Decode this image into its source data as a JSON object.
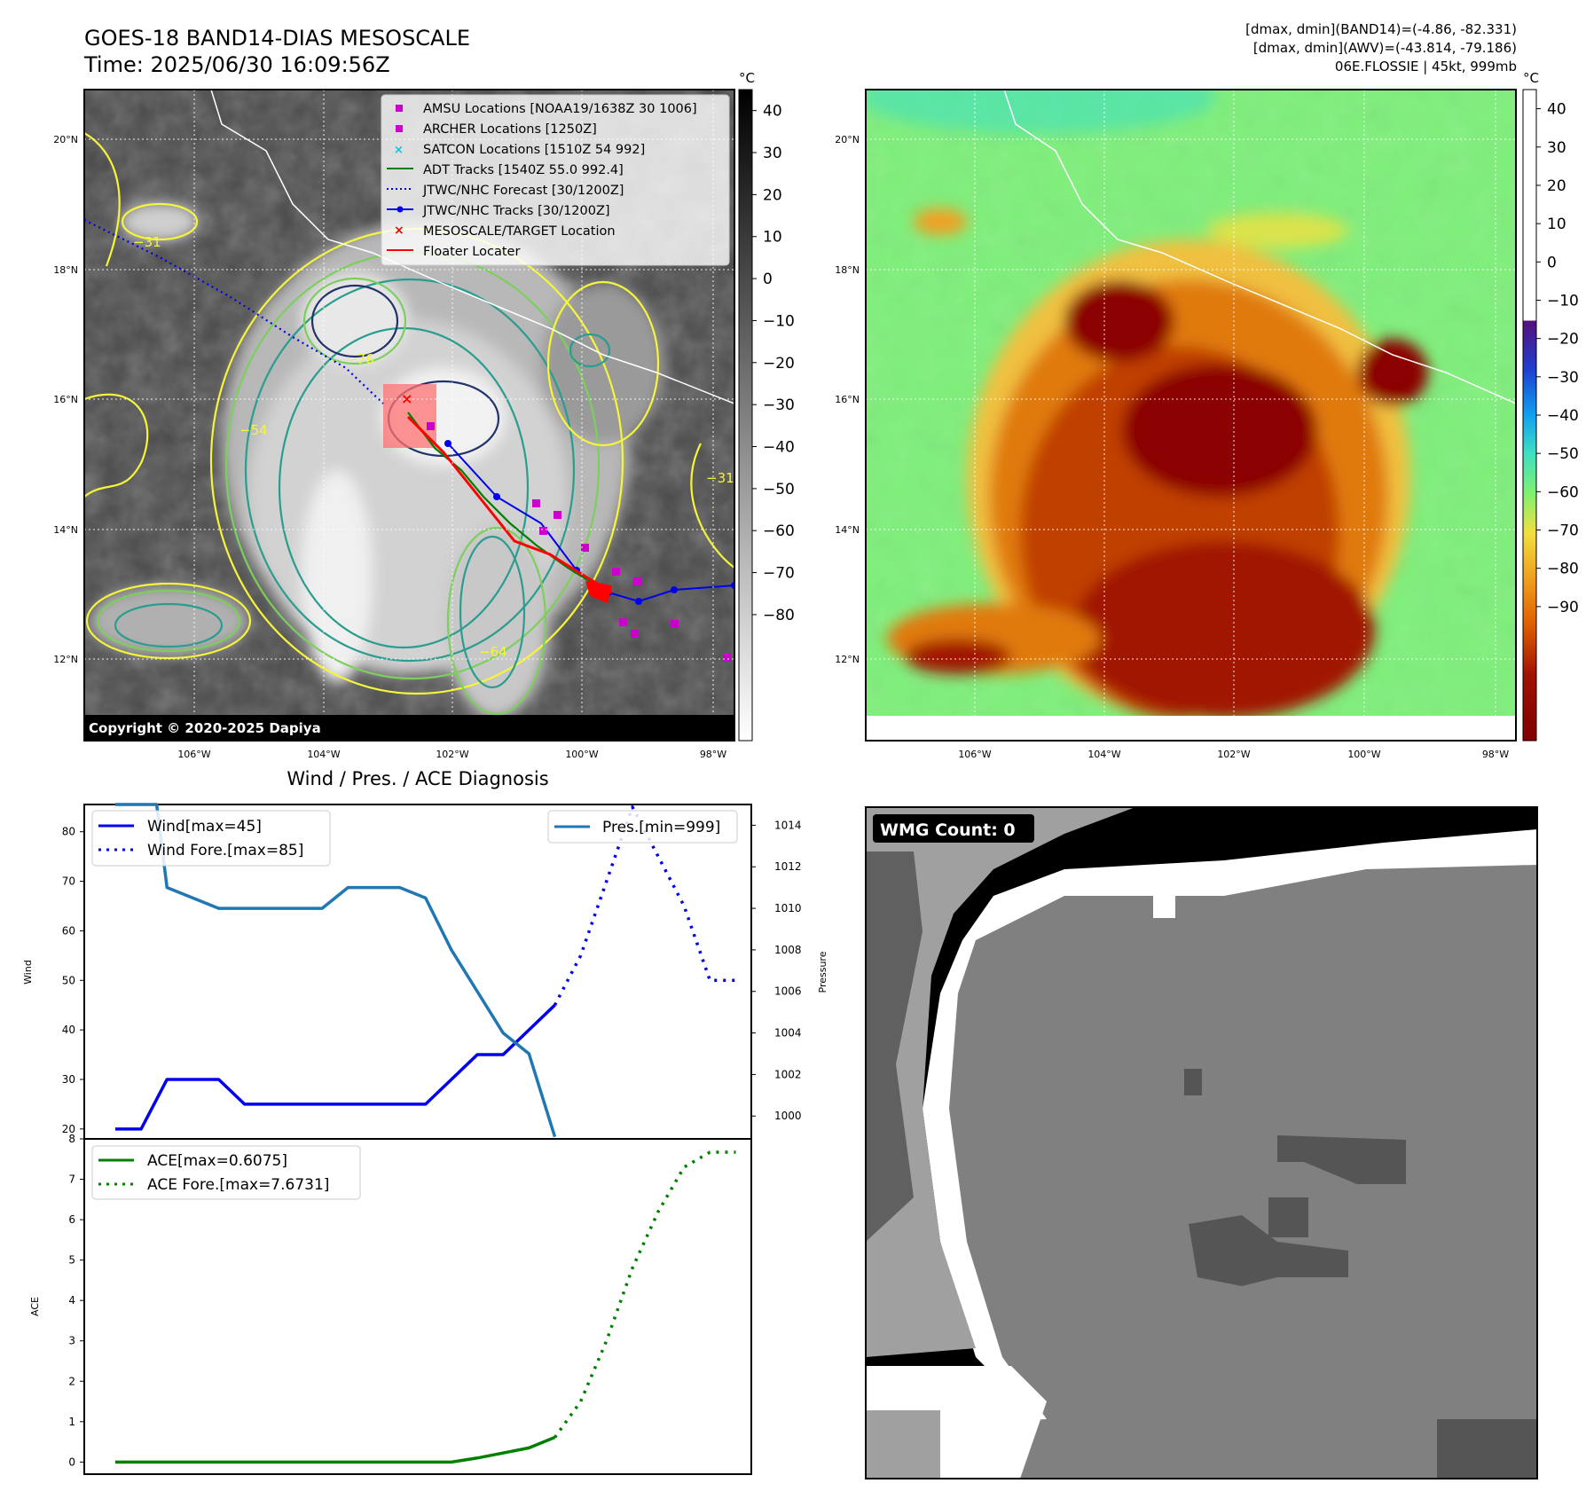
{
  "header": {
    "title": "GOES-18 BAND14-DIAS MESOSCALE",
    "time": "Time: 2025/06/30 16:09:56Z",
    "info1": "[dmax, dmin](BAND14)=(-4.86, -82.331)",
    "info2": "[dmax, dmin](AWV)=(-43.814, -79.186)",
    "info3": "06E.FLOSSIE | 45kt, 999mb"
  },
  "colors": {
    "land_dark": "#4a4a4a",
    "cloud_light": "#dcdcdc",
    "contour_yellow": "#f5f53a",
    "contour_green": "#7ccf5c",
    "contour_teal": "#2a9d8f",
    "contour_navy": "#22336b",
    "awv_green": "#7ef07a",
    "awv_orange": "#e07a10",
    "awv_red": "#8b0000",
    "wind": "#0000ee",
    "pressure": "#1f77b4",
    "ace": "#008000"
  },
  "map": {
    "lon_labels": [
      "106°W",
      "104°W",
      "102°W",
      "100°W",
      "98°W"
    ],
    "lat_labels": [
      "20°N",
      "18°N",
      "16°N",
      "14°N",
      "12°N"
    ],
    "copyright": "Copyright © 2020-2025 Dapiya",
    "unit": "°C",
    "colorbar1_ticks": [
      "40",
      "30",
      "20",
      "10",
      "0",
      "−10",
      "−20",
      "−30",
      "−40",
      "−50",
      "−60",
      "−70",
      "−80"
    ],
    "colorbar2_ticks": [
      "40",
      "30",
      "20",
      "10",
      "0",
      "−10",
      "−20",
      "−30",
      "−40",
      "−50",
      "−60",
      "−70",
      "−80",
      "−90"
    ],
    "contour_labels": [
      "−31",
      "−54",
      "−64",
      "−76",
      "−31"
    ]
  },
  "legend": {
    "items": [
      "AMSU Locations [NOAA19/1638Z 30 1006]",
      "ARCHER Locations [1250Z]",
      "SATCON Locations [1510Z 54 992]",
      "ADT Tracks [1540Z 55.0 992.4]",
      "JTWC/NHC Forecast [30/1200Z]",
      "JTWC/NHC Tracks [30/1200Z]",
      "MESOSCALE/TARGET Location",
      "Floater Locater"
    ]
  },
  "wmg": {
    "label": "WMG Count: 0"
  },
  "chart_data": [
    {
      "type": "line",
      "title": "Wind / Pres. / ACE Diagnosis",
      "ylabel": "Wind",
      "ylim": [
        18,
        85.5
      ],
      "yticks": [
        20,
        30,
        40,
        50,
        60,
        70,
        80
      ],
      "xlim": [
        -1.2,
        24.6
      ],
      "series": [
        {
          "name": "Wind[max=45]",
          "style": "solid",
          "x": [
            0,
            1,
            2,
            3,
            4,
            5,
            6,
            7,
            8,
            9,
            10,
            11,
            12,
            13,
            14,
            15,
            16,
            17
          ],
          "values": [
            20,
            20,
            30,
            30,
            30,
            25,
            25,
            25,
            25,
            25,
            25,
            25,
            25,
            30,
            35,
            35,
            40,
            45
          ]
        },
        {
          "name": "Wind Fore.[max=85]",
          "style": "dotted",
          "x": [
            17,
            18,
            19,
            20,
            21,
            22,
            23,
            24
          ],
          "values": [
            45,
            55,
            70,
            85,
            75,
            65,
            50,
            50
          ]
        }
      ],
      "y2": {
        "ylabel": "Pressure",
        "ylim": [
          998.9,
          1015.0
        ],
        "yticks": [
          1000,
          1002,
          1004,
          1006,
          1008,
          1010,
          1012,
          1014
        ],
        "series": [
          {
            "name": "Pres.[min=999]",
            "style": "solid",
            "x": [
              0,
              1,
              1.6,
              2,
              3,
              4,
              5,
              6,
              7,
              8,
              9,
              10,
              11,
              12,
              13,
              14,
              15,
              16,
              17
            ],
            "values": [
              1015,
              1015,
              1015,
              1011,
              1010.5,
              1010,
              1010,
              1010,
              1010,
              1010,
              1011,
              1011,
              1011,
              1010.5,
              1008,
              1006,
              1004,
              1003,
              999
            ]
          }
        ]
      }
    },
    {
      "type": "line",
      "ylabel": "ACE",
      "ylim": [
        -0.3,
        8
      ],
      "yticks": [
        0,
        1,
        2,
        3,
        4,
        5,
        6,
        7,
        8
      ],
      "xlim": [
        -1.2,
        24.6
      ],
      "series": [
        {
          "name": "ACE[max=0.6075]",
          "style": "solid",
          "x": [
            0,
            12,
            13,
            14,
            16,
            17
          ],
          "values": [
            0,
            0,
            0,
            0.1,
            0.35,
            0.61
          ]
        },
        {
          "name": "ACE Fore.[max=7.6731]",
          "style": "dotted",
          "x": [
            17,
            18,
            19,
            20,
            21,
            22,
            23,
            24
          ],
          "values": [
            0.61,
            1.5,
            3.0,
            4.8,
            6.2,
            7.3,
            7.67,
            7.67
          ]
        }
      ]
    }
  ]
}
